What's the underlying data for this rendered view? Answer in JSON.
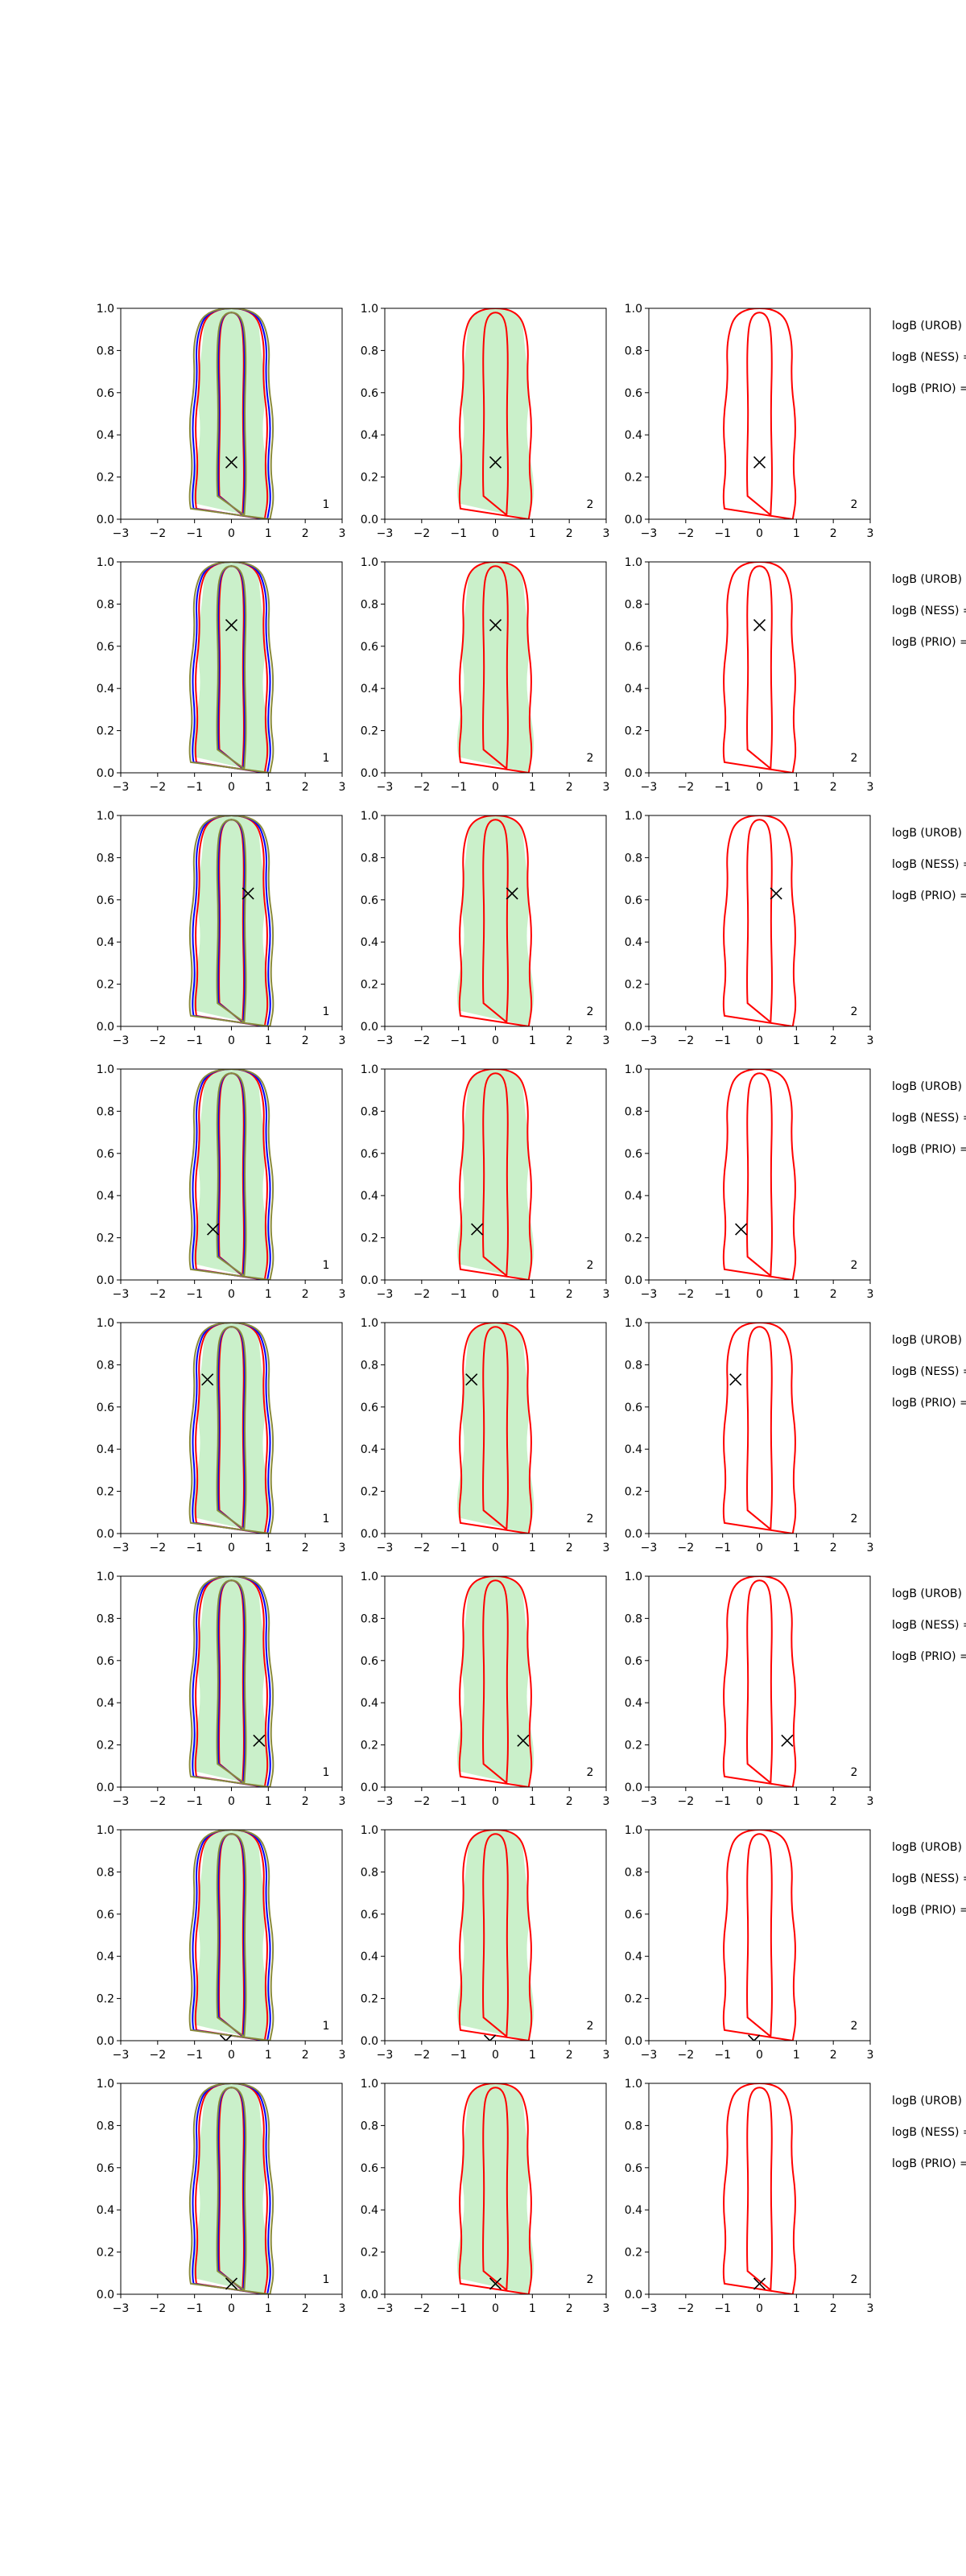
{
  "chart_data": {
    "type": "contour",
    "x_ticks": [
      "−3",
      "−2",
      "−1",
      "0",
      "1",
      "2",
      "3"
    ],
    "y_ticks": [
      "0.0",
      "0.2",
      "0.4",
      "0.6",
      "0.8",
      "1.0"
    ],
    "xlim": [
      -3,
      3
    ],
    "ylim": [
      0,
      1
    ],
    "grid": false,
    "colors": {
      "uncertainty_fill": "#9fe39f",
      "red_contour": "#ff0000",
      "blue_contour": "#0000ff",
      "olive_contour": "#8b8b3a",
      "marker": "#000000"
    },
    "columns": [
      {
        "corner_label": "1",
        "contours": [
          "red",
          "blue",
          "olive"
        ]
      },
      {
        "corner_label": "2",
        "contours": [
          "red"
        ]
      },
      {
        "corner_label": "2",
        "contours": [
          "red"
        ]
      }
    ],
    "side_labels": [
      "logB (UROB) =",
      "logB (NESS) =",
      "logB (PRIO) ="
    ],
    "rows": [
      {
        "marker": {
          "x": 0.0,
          "y": 0.27
        }
      },
      {
        "marker": {
          "x": 0.0,
          "y": 0.7
        }
      },
      {
        "marker": {
          "x": 0.45,
          "y": 0.63
        }
      },
      {
        "marker": {
          "x": -0.5,
          "y": 0.24
        }
      },
      {
        "marker": {
          "x": -0.65,
          "y": 0.73
        }
      },
      {
        "marker": {
          "x": 0.75,
          "y": 0.22
        }
      },
      {
        "marker": {
          "x": -0.15,
          "y": 0.0
        }
      },
      {
        "marker": {
          "x": 0.0,
          "y": 0.05
        }
      }
    ]
  }
}
